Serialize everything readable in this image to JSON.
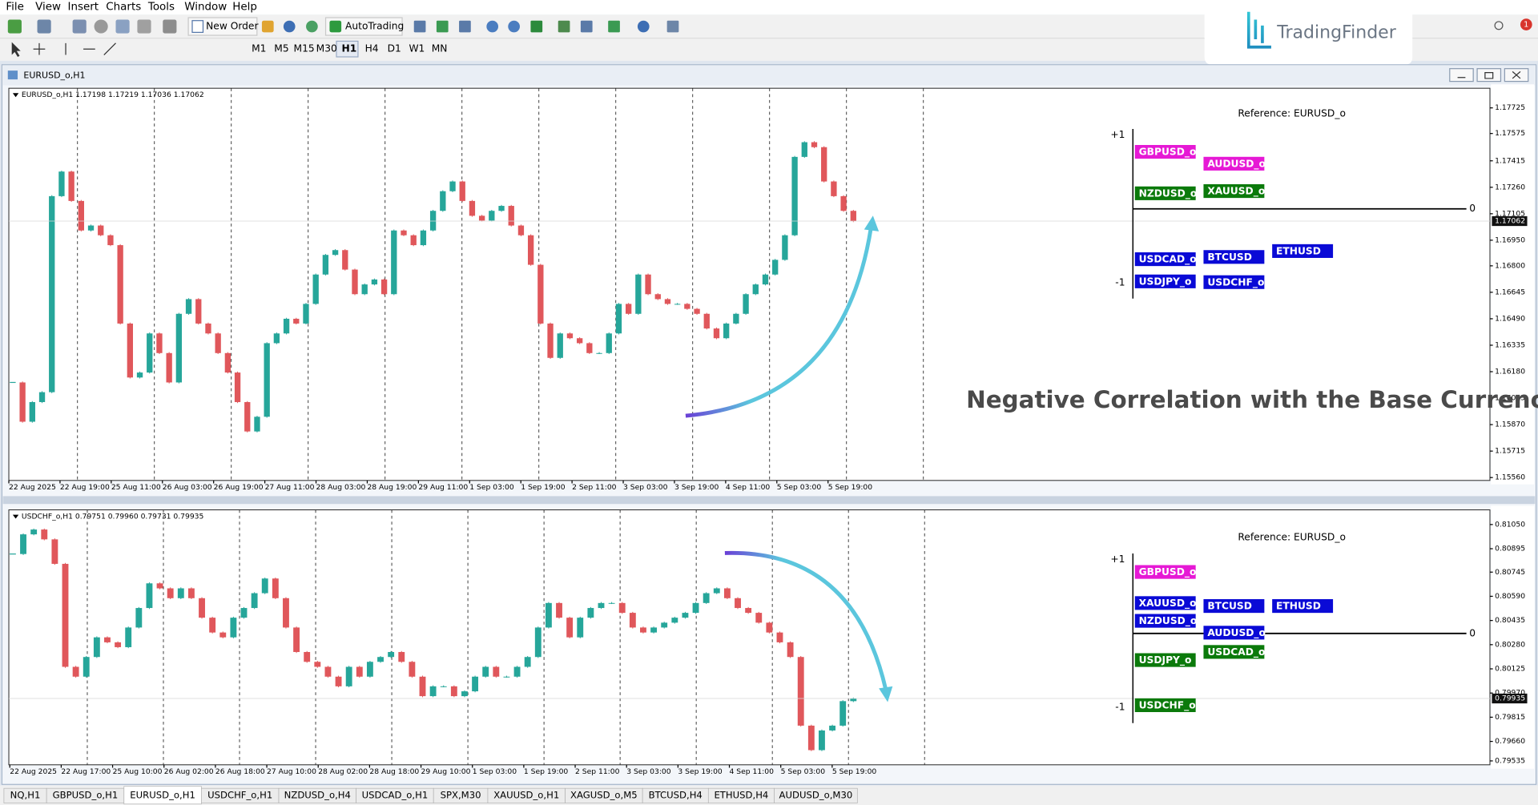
{
  "menu": [
    "File",
    "View",
    "Insert",
    "Charts",
    "Tools",
    "Window",
    "Help"
  ],
  "toolbar": {
    "new_order": "New Order",
    "auto_trading": "AutoTrading",
    "timeframes": [
      "M1",
      "M5",
      "M15",
      "M30",
      "H1",
      "H4",
      "D1",
      "W1",
      "MN"
    ],
    "active_timeframe": 4
  },
  "logo": "TradingFinder",
  "notifications": 1,
  "window_title": "EURUSD_o,H1",
  "annotation": "Negative Correlation with the Base Currency",
  "charts": [
    {
      "type": "candlestick",
      "info": "EURUSD_o,H1 1.17198 1.17219 1.17036 1.17062",
      "ylim": [
        1.15543,
        1.1784
      ],
      "yticks": [
        1.17725,
        1.17575,
        1.17415,
        {
          "value": 1.1726,
          "label": "1.17260"
        },
        1.17105,
        {
          "value": 1.1695,
          "label": "1.16950"
        },
        {
          "value": 1.168,
          "label": "1.16800"
        },
        1.16645,
        {
          "value": 1.1649,
          "label": "1.16490"
        },
        1.16335,
        {
          "value": 1.1618,
          "label": "1.16180"
        },
        1.16025,
        {
          "value": 1.1587,
          "label": "1.15870"
        },
        1.15715,
        {
          "value": 1.1556,
          "label": "1.15560"
        }
      ],
      "current_price": 1.17062,
      "x_labels": [
        "22 Aug 2025",
        "22 Aug 19:00",
        "25 Aug 11:00",
        "26 Aug 03:00",
        "26 Aug 19:00",
        "27 Aug 11:00",
        "28 Aug 03:00",
        "28 Aug 19:00",
        "29 Aug 11:00",
        "1 Sep 03:00",
        "1 Sep 19:00",
        "2 Sep 11:00",
        "3 Sep 03:00",
        "3 Sep 19:00",
        "4 Sep 11:00",
        "5 Sep 03:00",
        "5 Sep 19:00"
      ],
      "up_color": "#26a69a",
      "down_color": "#e0575b",
      "closes": [
        1.16117,
        1.15887,
        1.16002,
        1.1606,
        1.17208,
        1.17352,
        1.1718,
        1.17007,
        1.17036,
        1.16979,
        1.16921,
        1.16462,
        1.16146,
        1.16175,
        1.16404,
        1.16289,
        1.16117,
        1.16519,
        1.16605,
        1.16462,
        1.16404,
        1.16289,
        1.16175,
        1.16002,
        1.1583,
        1.15916,
        1.16347,
        1.16404,
        1.1649,
        1.16462,
        1.16577,
        1.16749,
        1.16864,
        1.16892,
        1.16778,
        1.16634,
        1.16691,
        1.1672,
        1.16634,
        1.17007,
        1.16979,
        1.16921,
        1.17007,
        1.17122,
        1.17237,
        1.17294,
        1.1718,
        1.17093,
        1.17065,
        1.17122,
        1.17151,
        1.17036,
        1.16979,
        1.16806,
        1.16462,
        1.16261,
        1.16404,
        1.16376,
        1.16347,
        1.16289,
        1.16289,
        1.16404,
        1.16577,
        1.16519,
        1.16749,
        1.16634,
        1.16605,
        1.16577,
        1.16577,
        1.16548,
        1.16519,
        1.16433,
        1.16376,
        1.16462,
        1.16519,
        1.16634,
        1.16691,
        1.16749,
        1.16835,
        1.16979,
        1.17438,
        1.17524,
        1.17495,
        1.17294,
        1.17208,
        1.17122,
        1.17062
      ],
      "correlation": {
        "reference": "Reference: EURUSD_o",
        "scale_ticks": [
          {
            "value": 1,
            "label": "+1"
          },
          0,
          -1
        ],
        "items": [
          {
            "name": "GBPUSD_o",
            "value": 0.77,
            "color": "#e619d5"
          },
          {
            "name": "AUDUSD_o",
            "value": 0.61,
            "color": "#e619d5"
          },
          {
            "name": "NZDUSD_o",
            "value": 0.21,
            "color": "#0b7a0b"
          },
          {
            "name": "XAUUSD_o",
            "value": 0.24,
            "color": "#0b7a0b"
          },
          {
            "name": "USDJPY_o",
            "value": -0.98,
            "color": "#0a0ad6"
          },
          {
            "name": "USDCHF_o",
            "value": -0.99,
            "color": "#0a0ad6"
          },
          {
            "name": "USDCAD_o",
            "value": -0.68,
            "color": "#0a0ad6"
          },
          {
            "name": "BTCUSD",
            "value": -0.65,
            "color": "#0a0ad6"
          },
          {
            "name": "ETHUSD",
            "value": -0.57,
            "color": "#0a0ad6"
          }
        ]
      }
    },
    {
      "type": "candlestick",
      "info": "USDCHF_o,H1 0.79751 0.79960 0.79731 0.79935",
      "ylim": [
        0.7951,
        0.81144
      ],
      "yticks": [
        {
          "value": 0.8105,
          "label": "0.81050"
        },
        0.80895,
        0.80745,
        {
          "value": 0.8059,
          "label": "0.80590"
        },
        0.80435,
        {
          "value": 0.8028,
          "label": "0.80280"
        },
        0.80125,
        {
          "value": 0.7997,
          "label": "0.79970"
        },
        0.79815,
        {
          "value": 0.7966,
          "label": "0.79660"
        },
        0.79535
      ],
      "current_price": 0.79935,
      "x_labels": [
        "22 Aug 2025",
        "22 Aug 17:00",
        "25 Aug 10:00",
        "26 Aug 02:00",
        "26 Aug 18:00",
        "27 Aug 10:00",
        "28 Aug 02:00",
        "28 Aug 18:00",
        "29 Aug 10:00",
        "1 Sep 03:00",
        "1 Sep 19:00",
        "2 Sep 11:00",
        "3 Sep 03:00",
        "3 Sep 19:00",
        "4 Sep 11:00",
        "5 Sep 03:00",
        "5 Sep 19:00"
      ],
      "up_color": "#26a69a",
      "down_color": "#e0575b",
      "closes": [
        0.80861,
        0.80987,
        0.81018,
        0.80955,
        0.80798,
        0.80138,
        0.80075,
        0.80201,
        0.80327,
        0.80295,
        0.80264,
        0.8039,
        0.80515,
        0.80673,
        0.80641,
        0.80578,
        0.80641,
        0.80578,
        0.80453,
        0.80358,
        0.80327,
        0.80453,
        0.80515,
        0.8061,
        0.80704,
        0.80578,
        0.8039,
        0.80233,
        0.8017,
        0.80138,
        0.80075,
        0.80013,
        0.80138,
        0.80075,
        0.8017,
        0.80201,
        0.80233,
        0.8017,
        0.80075,
        0.7995,
        0.80013,
        0.80013,
        0.7995,
        0.79981,
        0.80075,
        0.80138,
        0.80075,
        0.80075,
        0.80138,
        0.80201,
        0.8039,
        0.80547,
        0.80453,
        0.80327,
        0.80453,
        0.80515,
        0.80547,
        0.80547,
        0.80484,
        0.8039,
        0.80358,
        0.8039,
        0.80421,
        0.80453,
        0.80484,
        0.80547,
        0.8061,
        0.80641,
        0.80578,
        0.80515,
        0.80484,
        0.80421,
        0.80358,
        0.80295,
        0.80201,
        0.79761,
        0.79604,
        0.7973,
        0.79761,
        0.79918,
        0.79935
      ],
      "correlation": {
        "reference": "Reference: EURUSD_o",
        "scale_ticks": [
          {
            "value": 1,
            "label": "+1"
          },
          0,
          -1
        ],
        "items": [
          {
            "name": "GBPUSD_o",
            "value": 0.83,
            "color": "#e619d5"
          },
          {
            "name": "NZDUSD_o",
            "value": 0.17,
            "color": "#0a0ad6"
          },
          {
            "name": "AUDUSD_o",
            "value": 0.01,
            "color": "#0a0ad6"
          },
          {
            "name": "XAUUSD_o",
            "value": 0.41,
            "color": "#0a0ad6"
          },
          {
            "name": "BTCUSD",
            "value": 0.37,
            "color": "#0a0ad6"
          },
          {
            "name": "ETHUSD",
            "value": 0.37,
            "color": "#0a0ad6"
          },
          {
            "name": "USDJPY_o",
            "value": -0.36,
            "color": "#0b7a0b"
          },
          {
            "name": "USDCAD_o",
            "value": -0.25,
            "color": "#0b7a0b"
          },
          {
            "name": "USDCHF_o",
            "value": -0.97,
            "color": "#0b7a0b"
          }
        ]
      }
    }
  ],
  "tabs": [
    "NQ,H1",
    "GBPUSD_o,H1",
    "EURUSD_o,H1",
    "USDCHF_o,H1",
    "NZDUSD_o,H4",
    "USDCAD_o,H1",
    "SPX,M30",
    "XAUUSD_o,H1",
    "XAGUSD_o,M5",
    "BTCUSD,H4",
    "ETHUSD,H4",
    "AUDUSD_o,M30"
  ],
  "active_tab": 2
}
